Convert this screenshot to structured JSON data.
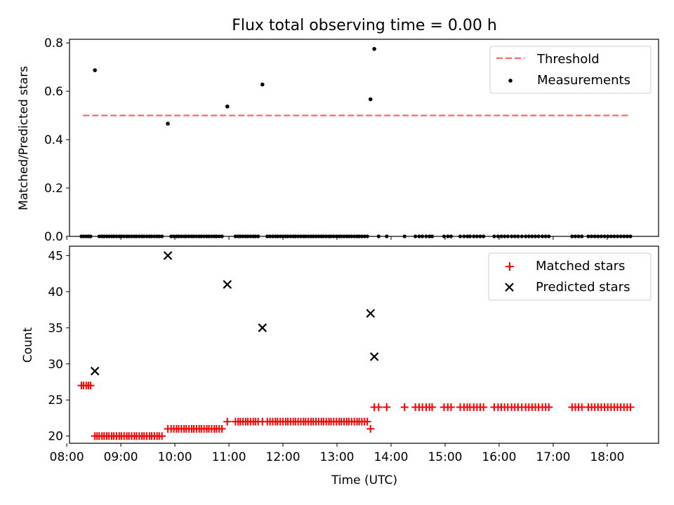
{
  "figure": {
    "title": "Flux total observing time = 0.00 h"
  },
  "chart_data": [
    {
      "type": "scatter",
      "panel": "top",
      "ylabel": "Matched/Predicted stars",
      "xlim": [
        8.05,
        18.95
      ],
      "ylim": [
        0,
        0.815
      ],
      "yticks": [
        0,
        0.2,
        0.4,
        0.6,
        0.8
      ],
      "ytick_labels": [
        "0.0",
        "0.2",
        "0.4",
        "0.6",
        "0.8"
      ],
      "xticks": [
        8,
        9,
        10,
        11,
        12,
        13,
        14,
        15,
        16,
        17,
        18
      ],
      "legend_position": "top-right",
      "threshold": {
        "name": "Threshold",
        "value": 0.5,
        "x_range": [
          8.3,
          18.4
        ],
        "color": "#ff6666",
        "style": "dashed"
      },
      "series": [
        {
          "name": "Measurements",
          "marker": "dot",
          "color": "#000000",
          "points": [
            [
              8.52,
              0.687
            ],
            [
              9.87,
              0.466
            ],
            [
              10.97,
              0.537
            ],
            [
              11.62,
              0.628
            ],
            [
              13.62,
              0.567
            ],
            [
              13.69,
              0.775
            ]
          ],
          "zero_points_x": [
            8.27,
            8.31,
            8.36,
            8.4,
            8.44,
            8.6,
            8.65,
            8.69,
            8.74,
            8.78,
            8.83,
            8.87,
            8.92,
            8.97,
            9.01,
            9.06,
            9.11,
            9.15,
            9.2,
            9.25,
            9.29,
            9.34,
            9.39,
            9.43,
            9.48,
            9.53,
            9.57,
            9.62,
            9.67,
            9.71,
            9.76,
            9.93,
            9.98,
            10.03,
            10.07,
            10.12,
            10.17,
            10.21,
            10.26,
            10.31,
            10.35,
            10.4,
            10.45,
            10.49,
            10.54,
            10.59,
            10.63,
            10.68,
            10.73,
            10.77,
            10.82,
            10.87,
            11.12,
            11.17,
            11.21,
            11.26,
            11.31,
            11.35,
            11.4,
            11.45,
            11.49,
            11.54,
            11.71,
            11.76,
            11.81,
            11.86,
            11.9,
            11.95,
            12.0,
            12.05,
            12.09,
            12.14,
            12.19,
            12.23,
            12.28,
            12.33,
            12.38,
            12.42,
            12.47,
            12.52,
            12.56,
            12.61,
            12.66,
            12.71,
            12.75,
            12.8,
            12.85,
            12.89,
            12.94,
            12.99,
            13.04,
            13.08,
            13.13,
            13.18,
            13.22,
            13.27,
            13.32,
            13.37,
            13.41,
            13.46,
            13.51,
            13.56,
            13.77,
            13.92,
            14.25,
            14.45,
            14.52,
            14.58,
            14.65,
            14.71,
            14.76,
            14.98,
            15.05,
            15.11,
            15.28,
            15.35,
            15.41,
            15.46,
            15.53,
            15.59,
            15.65,
            15.71,
            15.91,
            15.98,
            16.04,
            16.1,
            16.16,
            16.23,
            16.29,
            16.35,
            16.42,
            16.49,
            16.55,
            16.61,
            16.67,
            16.73,
            16.8,
            16.86,
            16.92,
            17.35,
            17.41,
            17.47,
            17.53,
            17.65,
            17.71,
            17.77,
            17.83,
            17.89,
            17.95,
            18.01,
            18.07,
            18.13,
            18.19,
            18.25,
            18.31,
            18.37,
            18.43
          ]
        }
      ]
    },
    {
      "type": "scatter",
      "panel": "bottom",
      "xlabel": "Time (UTC)",
      "ylabel": "Count",
      "xlim": [
        8.05,
        18.95
      ],
      "ylim": [
        19,
        46.3
      ],
      "yticks": [
        20,
        25,
        30,
        35,
        40,
        45
      ],
      "ytick_labels": [
        "20",
        "25",
        "30",
        "35",
        "40",
        "45"
      ],
      "xticks": [
        8,
        9,
        10,
        11,
        12,
        13,
        14,
        15,
        16,
        17,
        18
      ],
      "xtick_labels": [
        "08:00",
        "09:00",
        "10:00",
        "11:00",
        "12:00",
        "13:00",
        "14:00",
        "15:00",
        "16:00",
        "17:00",
        "18:00"
      ],
      "legend_position": "top-right",
      "series": [
        {
          "name": "Matched stars",
          "marker": "plus",
          "color": "#ff0000",
          "groups": [
            {
              "y": 27,
              "x": [
                8.27,
                8.31,
                8.36,
                8.4,
                8.44
              ]
            },
            {
              "y": 20,
              "x": [
                8.52,
                8.56,
                8.6,
                8.65,
                8.69,
                8.74,
                8.78,
                8.83,
                8.87,
                8.92,
                8.97,
                9.01,
                9.06,
                9.11,
                9.15,
                9.2,
                9.25,
                9.29,
                9.34,
                9.39,
                9.43,
                9.48,
                9.53,
                9.57,
                9.62,
                9.67,
                9.71,
                9.76
              ]
            },
            {
              "y": 21,
              "x": [
                9.87,
                9.93,
                9.98,
                10.03,
                10.07,
                10.12,
                10.17,
                10.21,
                10.26,
                10.31,
                10.35,
                10.4,
                10.45,
                10.49,
                10.54,
                10.59,
                10.63,
                10.68,
                10.73,
                10.77,
                10.82,
                10.87
              ]
            },
            {
              "y": 22,
              "x": [
                10.97,
                11.12,
                11.17,
                11.21,
                11.26,
                11.31,
                11.35,
                11.4,
                11.45,
                11.49,
                11.54,
                11.62,
                11.71,
                11.76,
                11.81,
                11.86,
                11.9,
                11.95,
                12.0,
                12.05,
                12.09,
                12.14,
                12.19,
                12.23,
                12.28,
                12.33,
                12.38,
                12.42,
                12.47,
                12.52,
                12.56,
                12.61,
                12.66,
                12.71,
                12.75,
                12.8,
                12.85,
                12.89,
                12.94,
                12.99,
                13.04,
                13.08,
                13.13,
                13.18,
                13.22,
                13.27,
                13.32,
                13.37,
                13.41,
                13.46,
                13.51,
                13.56
              ]
            },
            {
              "y": 21,
              "x": [
                13.62
              ]
            },
            {
              "y": 24,
              "x": [
                13.69,
                13.77,
                13.92,
                14.25,
                14.45,
                14.52,
                14.58,
                14.65,
                14.71,
                14.76,
                14.98,
                15.05,
                15.11,
                15.28,
                15.35,
                15.41,
                15.46,
                15.53,
                15.59,
                15.65,
                15.71,
                15.91,
                15.98,
                16.04,
                16.1,
                16.16,
                16.23,
                16.29,
                16.35,
                16.42,
                16.49,
                16.55,
                16.61,
                16.67,
                16.73,
                16.8,
                16.86,
                16.92,
                17.35,
                17.41,
                17.47,
                17.53,
                17.65,
                17.71,
                17.77,
                17.83,
                17.89,
                17.95,
                18.01,
                18.07,
                18.13,
                18.19,
                18.25,
                18.31,
                18.37,
                18.43
              ]
            }
          ]
        },
        {
          "name": "Predicted stars",
          "marker": "x",
          "color": "#000000",
          "points": [
            [
              8.52,
              29
            ],
            [
              9.87,
              45
            ],
            [
              10.97,
              41
            ],
            [
              11.62,
              35
            ],
            [
              13.62,
              37
            ],
            [
              13.69,
              31
            ]
          ]
        }
      ]
    }
  ]
}
